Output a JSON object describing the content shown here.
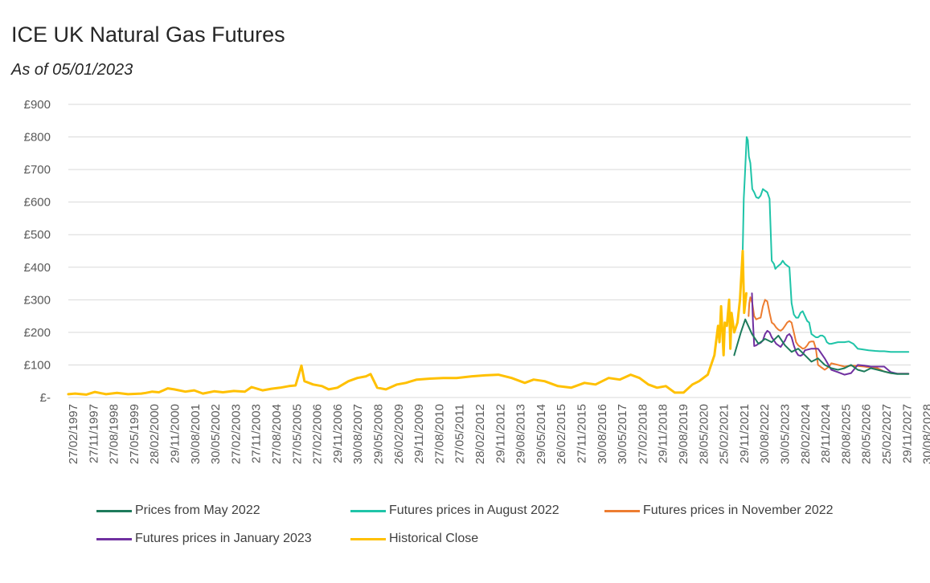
{
  "chart_data": {
    "type": "line",
    "title": "ICE UK Natural Gas Futures",
    "subtitle": "As of 05/01/2023",
    "y_tick_labels": [
      "£-",
      "£100",
      "£200",
      "£300",
      "£400",
      "£500",
      "£600",
      "£700",
      "£800",
      "£900"
    ],
    "ylim": [
      0,
      900
    ],
    "xlim": [
      "1997-02-27",
      "2029-01-01"
    ],
    "x_tick_labels": [
      "27/02/1997",
      "27/11/1997",
      "27/08/1998",
      "27/05/1999",
      "28/02/2000",
      "29/11/2000",
      "30/08/2001",
      "30/05/2002",
      "27/02/2003",
      "27/11/2003",
      "27/08/2004",
      "27/05/2005",
      "27/02/2006",
      "29/11/2006",
      "30/08/2007",
      "29/05/2008",
      "26/02/2009",
      "29/11/2009",
      "27/08/2010",
      "27/05/2011",
      "28/02/2012",
      "29/11/2012",
      "29/08/2013",
      "29/05/2014",
      "26/02/2015",
      "27/11/2015",
      "30/08/2016",
      "30/05/2017",
      "27/02/2018",
      "29/11/2018",
      "29/08/2019",
      "28/05/2020",
      "25/02/2021",
      "29/11/2021",
      "30/08/2022",
      "30/05/2023",
      "28/02/2024",
      "28/11/2024",
      "28/08/2025",
      "28/05/2026",
      "25/02/2027",
      "29/11/2027",
      "30/08/2028"
    ],
    "grid": true,
    "legend_position": "bottom",
    "series": [
      {
        "name": "Historical Close",
        "color": "#FFC000",
        "x": [
          "1997-02-27",
          "1997-06-01",
          "1997-11-01",
          "1998-03-01",
          "1998-08-01",
          "1999-01-01",
          "1999-06-01",
          "1999-12-01",
          "2000-02-01",
          "2000-05-01",
          "2000-08-01",
          "2000-10-01",
          "2000-12-01",
          "2001-03-01",
          "2001-08-01",
          "2001-12-01",
          "2002-04-01",
          "2002-09-01",
          "2003-01-01",
          "2003-06-01",
          "2003-11-01",
          "2004-02-01",
          "2004-07-01",
          "2004-11-01",
          "2005-03-01",
          "2005-07-01",
          "2005-10-01",
          "2005-12-20",
          "2006-02-01",
          "2006-06-01",
          "2006-10-01",
          "2007-01-01",
          "2007-05-01",
          "2007-10-01",
          "2008-02-01",
          "2008-06-01",
          "2008-08-01",
          "2008-11-01",
          "2009-03-01",
          "2009-08-01",
          "2009-12-01",
          "2010-05-01",
          "2010-11-01",
          "2011-05-01",
          "2011-11-01",
          "2012-06-01",
          "2012-12-01",
          "2013-06-01",
          "2013-12-01",
          "2014-06-01",
          "2014-10-01",
          "2015-03-01",
          "2015-09-01",
          "2016-03-01",
          "2016-09-01",
          "2017-02-01",
          "2017-08-01",
          "2018-01-01",
          "2018-06-01",
          "2018-10-01",
          "2019-02-01",
          "2019-06-01",
          "2019-10-01",
          "2020-02-01",
          "2020-06-01",
          "2020-10-01",
          "2021-01-01",
          "2021-05-01",
          "2021-08-01",
          "2021-09-20",
          "2021-10-10",
          "2021-11-01",
          "2021-12-05",
          "2021-12-22",
          "2022-01-20",
          "2022-02-20",
          "2022-03-08",
          "2022-03-25",
          "2022-05-01",
          "2022-06-15",
          "2022-07-20",
          "2022-08-26",
          "2022-09-15",
          "2022-10-15"
        ],
        "y": [
          10,
          12,
          9,
          17,
          10,
          14,
          10,
          12,
          14,
          18,
          16,
          22,
          28,
          25,
          18,
          22,
          12,
          19,
          16,
          20,
          18,
          32,
          22,
          27,
          30,
          35,
          37,
          98,
          50,
          40,
          35,
          25,
          30,
          50,
          60,
          65,
          72,
          30,
          25,
          40,
          45,
          55,
          58,
          60,
          60,
          65,
          68,
          70,
          60,
          45,
          55,
          50,
          35,
          30,
          45,
          40,
          60,
          55,
          70,
          60,
          40,
          30,
          35,
          15,
          15,
          40,
          50,
          70,
          130,
          220,
          170,
          280,
          130,
          230,
          220,
          300,
          150,
          260,
          200,
          230,
          300,
          450,
          260,
          320
        ]
      },
      {
        "name": "Prices from May 2022",
        "color": "#1E7B5C",
        "x": [
          "2022-05-01",
          "2022-08-01",
          "2022-10-01",
          "2023-01-01",
          "2023-04-01",
          "2023-07-01",
          "2023-10-01",
          "2024-01-01",
          "2024-04-01",
          "2024-07-01",
          "2024-10-01",
          "2025-01-01",
          "2025-04-01",
          "2025-07-01",
          "2025-10-01",
          "2026-01-01",
          "2026-04-01",
          "2026-07-01",
          "2026-10-01",
          "2027-01-01",
          "2027-04-01",
          "2027-07-01",
          "2027-10-01",
          "2028-01-01",
          "2028-04-01",
          "2028-07-01",
          "2028-12-01"
        ],
        "y": [
          130,
          200,
          240,
          195,
          165,
          180,
          170,
          190,
          160,
          140,
          150,
          130,
          110,
          120,
          100,
          90,
          85,
          90,
          100,
          85,
          80,
          90,
          85,
          80,
          75,
          72,
          72
        ]
      },
      {
        "name": "Futures prices in August 2022",
        "color": "#1FC4A8",
        "x": [
          "2022-08-26",
          "2022-09-10",
          "2022-09-25",
          "2022-10-08",
          "2022-10-20",
          "2022-11-05",
          "2022-11-20",
          "2022-12-10",
          "2023-01-05",
          "2023-02-01",
          "2023-03-01",
          "2023-04-01",
          "2023-05-01",
          "2023-06-01",
          "2023-07-01",
          "2023-08-01",
          "2023-09-01",
          "2023-10-01",
          "2023-11-01",
          "2023-11-20",
          "2023-12-10",
          "2024-01-05",
          "2024-02-01",
          "2024-03-01",
          "2024-04-01",
          "2024-05-01",
          "2024-06-01",
          "2024-07-01",
          "2024-08-01",
          "2024-09-01",
          "2024-10-01",
          "2024-11-01",
          "2024-12-01",
          "2025-01-01",
          "2025-02-01",
          "2025-03-01",
          "2025-04-01",
          "2025-05-01",
          "2025-06-01",
          "2025-07-01",
          "2025-08-01",
          "2025-09-01",
          "2025-10-01",
          "2025-11-01",
          "2025-12-01",
          "2026-01-01",
          "2026-04-01",
          "2026-07-01",
          "2026-09-01",
          "2026-11-01",
          "2027-01-01",
          "2027-03-01",
          "2027-06-01",
          "2027-09-01",
          "2027-11-01",
          "2028-01-01",
          "2028-04-01",
          "2028-07-01",
          "2028-12-01"
        ],
        "y": [
          450,
          610,
          680,
          740,
          800,
          790,
          740,
          720,
          640,
          630,
          615,
          612,
          620,
          640,
          635,
          630,
          610,
          420,
          410,
          395,
          400,
          405,
          410,
          420,
          410,
          405,
          400,
          290,
          255,
          245,
          245,
          260,
          265,
          250,
          235,
          230,
          195,
          190,
          185,
          185,
          190,
          190,
          185,
          170,
          165,
          165,
          170,
          170,
          172,
          165,
          150,
          148,
          145,
          143,
          142,
          142,
          140,
          140,
          140
        ]
      },
      {
        "name": "Futures prices in November 2022",
        "color": "#ED7D31",
        "x": [
          "2022-11-15",
          "2022-11-25",
          "2022-12-10",
          "2023-01-05",
          "2023-02-01",
          "2023-03-01",
          "2023-04-01",
          "2023-05-01",
          "2023-06-01",
          "2023-07-01",
          "2023-08-01",
          "2023-09-01",
          "2023-10-01",
          "2023-11-01",
          "2023-12-01",
          "2024-01-01",
          "2024-02-01",
          "2024-03-01",
          "2024-04-01",
          "2024-05-01",
          "2024-06-01",
          "2024-07-01",
          "2024-08-01",
          "2024-09-01",
          "2024-10-01",
          "2024-11-01",
          "2024-12-01",
          "2025-01-01",
          "2025-02-01",
          "2025-03-01",
          "2025-04-01",
          "2025-05-01",
          "2025-06-01",
          "2025-07-01",
          "2025-08-01",
          "2025-09-01",
          "2025-10-01",
          "2025-11-01",
          "2025-12-01",
          "2026-01-01",
          "2026-04-01",
          "2026-07-01",
          "2026-10-01",
          "2027-01-01",
          "2027-04-01",
          "2027-07-01",
          "2027-10-01",
          "2028-01-01",
          "2028-04-01",
          "2028-07-01",
          "2028-12-01"
        ],
        "y": [
          250,
          290,
          308,
          290,
          250,
          240,
          243,
          245,
          280,
          300,
          295,
          260,
          230,
          225,
          215,
          208,
          205,
          210,
          220,
          230,
          235,
          230,
          200,
          170,
          160,
          155,
          150,
          152,
          160,
          170,
          172,
          172,
          150,
          100,
          95,
          90,
          85,
          90,
          95,
          105,
          100,
          95,
          98,
          97,
          95,
          92,
          90,
          80,
          75,
          73,
          73
        ]
      },
      {
        "name": "Futures prices in January 2023",
        "color": "#7030A0",
        "x": [
          "2023-01-01",
          "2023-01-15",
          "2023-02-01",
          "2023-03-01",
          "2023-04-01",
          "2023-05-01",
          "2023-06-01",
          "2023-07-01",
          "2023-08-01",
          "2023-09-01",
          "2023-10-01",
          "2023-11-01",
          "2023-12-01",
          "2024-01-01",
          "2024-02-01",
          "2024-03-01",
          "2024-04-01",
          "2024-05-01",
          "2024-06-01",
          "2024-07-01",
          "2024-08-01",
          "2024-09-01",
          "2024-10-01",
          "2024-11-01",
          "2024-12-01",
          "2025-01-01",
          "2025-04-01",
          "2025-07-01",
          "2025-10-01",
          "2026-01-01",
          "2026-04-01",
          "2026-07-01",
          "2026-10-01",
          "2027-01-01",
          "2027-04-01",
          "2027-07-01",
          "2027-10-01",
          "2028-01-01",
          "2028-04-01",
          "2028-07-01",
          "2028-12-01"
        ],
        "y": [
          320,
          230,
          158,
          160,
          165,
          168,
          175,
          195,
          205,
          200,
          185,
          175,
          165,
          160,
          155,
          165,
          175,
          190,
          195,
          185,
          160,
          140,
          130,
          128,
          132,
          145,
          150,
          150,
          120,
          85,
          78,
          70,
          75,
          100,
          98,
          95,
          95,
          95,
          78,
          73,
          73
        ]
      }
    ],
    "legend": [
      {
        "label": "Prices from May 2022",
        "color": "#1E7B5C"
      },
      {
        "label": "Futures prices in August 2022",
        "color": "#1FC4A8"
      },
      {
        "label": "Futures prices in November 2022",
        "color": "#ED7D31"
      },
      {
        "label": "Futures prices in January 2023",
        "color": "#7030A0"
      },
      {
        "label": "Historical Close",
        "color": "#FFC000"
      }
    ]
  }
}
